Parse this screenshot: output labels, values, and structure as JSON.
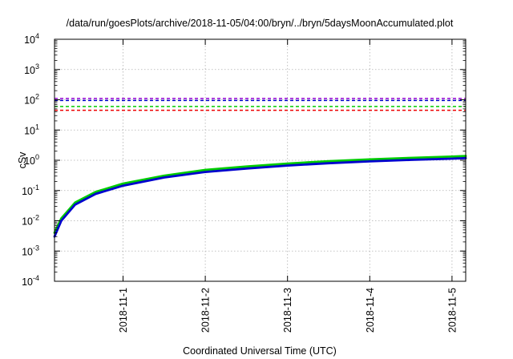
{
  "chart_data": {
    "type": "line",
    "title": "/data/run/goesPlots/archive/2018-11-05/04:00/bryn/../bryn/5daysMoonAccumulated.plot",
    "xlabel": "Coordinated Universal Time (UTC)",
    "ylabel": "cSv",
    "y_scale": "log",
    "ylim": [
      0.0001,
      10000
    ],
    "y_ticks": [
      {
        "value": 0.0001,
        "base": "10",
        "exp": "-4"
      },
      {
        "value": 0.001,
        "base": "10",
        "exp": "-3"
      },
      {
        "value": 0.01,
        "base": "10",
        "exp": "-2"
      },
      {
        "value": 0.1,
        "base": "10",
        "exp": "-1"
      },
      {
        "value": 1,
        "base": "10",
        "exp": "0"
      },
      {
        "value": 10,
        "base": "10",
        "exp": "1"
      },
      {
        "value": 100,
        "base": "10",
        "exp": "2"
      },
      {
        "value": 1000,
        "base": "10",
        "exp": "3"
      },
      {
        "value": 10000,
        "base": "10",
        "exp": "4"
      }
    ],
    "xlim": [
      "2018-10-31 04:00",
      "2018-11-05 04:00"
    ],
    "x_ticks": [
      "2018-11-1",
      "2018-11-2",
      "2018-11-3",
      "2018-11-4",
      "2018-11-5"
    ],
    "grid": true,
    "threshold_lines": [
      {
        "value": 110,
        "color": "#9400d3",
        "style": "dashed"
      },
      {
        "value": 95,
        "color": "#0000cd",
        "style": "dashed"
      },
      {
        "value": 60,
        "color": "#00cc00",
        "style": "dashed"
      },
      {
        "value": 45,
        "color": "#ee0000",
        "style": "dashed"
      }
    ],
    "series": [
      {
        "color": "#00cc00",
        "x": [
          "2018-10-31 04:00",
          "2018-10-31 06:00",
          "2018-10-31 10:00",
          "2018-10-31 16:00",
          "2018-11-01 00:00",
          "2018-11-01 12:00",
          "2018-11-02 00:00",
          "2018-11-02 12:00",
          "2018-11-03 00:00",
          "2018-11-03 12:00",
          "2018-11-04 00:00",
          "2018-11-04 12:00",
          "2018-11-05 00:00",
          "2018-11-05 04:00"
        ],
        "values": [
          0.004,
          0.012,
          0.04,
          0.09,
          0.17,
          0.31,
          0.48,
          0.62,
          0.78,
          0.93,
          1.07,
          1.2,
          1.32,
          1.38
        ]
      },
      {
        "color": "#0000cd",
        "x": [
          "2018-10-31 04:00",
          "2018-10-31 06:00",
          "2018-10-31 10:00",
          "2018-10-31 16:00",
          "2018-11-01 00:00",
          "2018-11-01 12:00",
          "2018-11-02 00:00",
          "2018-11-02 12:00",
          "2018-11-03 00:00",
          "2018-11-03 12:00",
          "2018-11-04 00:00",
          "2018-11-04 12:00",
          "2018-11-05 00:00",
          "2018-11-05 04:00"
        ],
        "values": [
          0.003,
          0.01,
          0.034,
          0.077,
          0.145,
          0.27,
          0.41,
          0.53,
          0.67,
          0.8,
          0.92,
          1.03,
          1.13,
          1.18
        ]
      }
    ]
  }
}
